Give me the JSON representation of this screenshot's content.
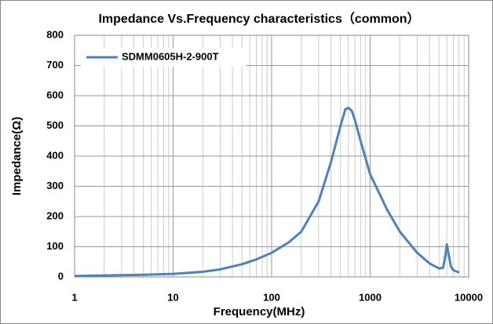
{
  "chart_data": {
    "type": "line",
    "title": "Impedance Vs.Frequency characteristics（common）",
    "x_label": "Frequency(MHz)",
    "y_label": "Impedance(Ω)",
    "log_x": true,
    "grid": true,
    "legend_position": "upper left",
    "xlim": [
      1,
      10000
    ],
    "xticks": [
      1,
      10,
      100,
      1000,
      10000
    ],
    "ylim": [
      0,
      800
    ],
    "yticks": [
      0,
      100,
      200,
      300,
      400,
      500,
      600,
      700,
      800
    ],
    "x": [
      1,
      2,
      5,
      10,
      20,
      30,
      50,
      70,
      100,
      150,
      200,
      300,
      400,
      500,
      560,
      600,
      650,
      700,
      800,
      1000,
      1500,
      2000,
      3000,
      4000,
      5000,
      5500,
      5800,
      6000,
      6300,
      6600,
      7000,
      8000
    ],
    "series": [
      {
        "name": "SDMM0605H-2-900T",
        "color": "#4f81bd",
        "values": [
          3,
          5,
          7,
          10,
          17,
          25,
          42,
          58,
          80,
          115,
          150,
          250,
          380,
          500,
          555,
          560,
          550,
          520,
          450,
          340,
          220,
          150,
          80,
          45,
          28,
          30,
          70,
          108,
          70,
          35,
          22,
          15
        ]
      }
    ]
  }
}
